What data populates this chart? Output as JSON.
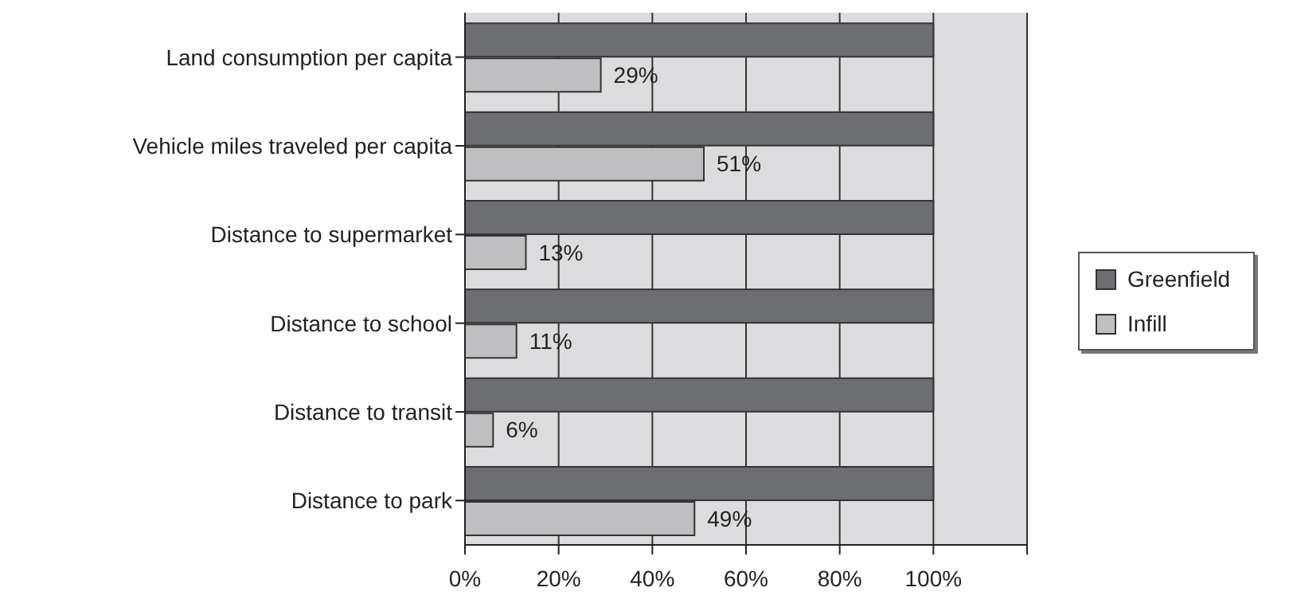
{
  "chart_data": {
    "type": "bar",
    "orientation": "horizontal",
    "categories": [
      "Land consumption per capita",
      "Vehicle miles traveled per capita",
      "Distance to supermarket",
      "Distance to school",
      "Distance to transit",
      "Distance to park"
    ],
    "series": [
      {
        "name": "Greenfield",
        "color": "#6d6e72",
        "values": [
          100,
          100,
          100,
          100,
          100,
          100
        ]
      },
      {
        "name": "Infill",
        "color": "#bfbfc2",
        "values": [
          29,
          51,
          13,
          11,
          6,
          49
        ],
        "value_labels": [
          "29%",
          "51%",
          "13%",
          "11%",
          "6%",
          "49%"
        ]
      }
    ],
    "xlim": [
      0,
      120
    ],
    "xticks": [
      {
        "value": 0,
        "label": "0%"
      },
      {
        "value": 20,
        "label": "20%"
      },
      {
        "value": 40,
        "label": "40%"
      },
      {
        "value": 60,
        "label": "60%"
      },
      {
        "value": 80,
        "label": "80%"
      },
      {
        "value": 100,
        "label": "100%"
      },
      {
        "value": 120,
        "label": null
      }
    ],
    "grid": "x",
    "legend": "right"
  }
}
